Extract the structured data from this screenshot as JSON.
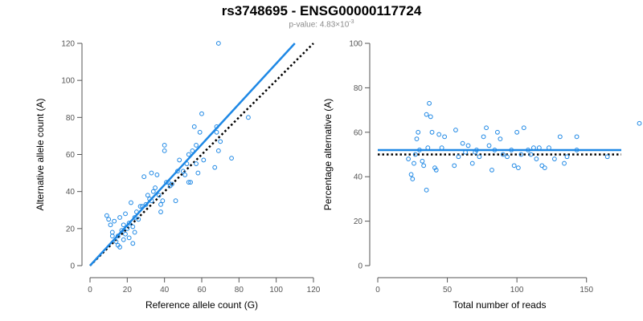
{
  "header": {
    "title": "rs3748695 - ENSG00000117724",
    "subtitle_prefix": "p-value: 4.83×10",
    "subtitle_exp": "-3"
  },
  "colors": {
    "accent": "#1e88e5",
    "expected": "#000000",
    "axis": "#555555"
  },
  "chart_data": [
    {
      "type": "scatter",
      "title": "",
      "xlabel": "Reference allele count (G)",
      "ylabel": "Alternative allele count (A)",
      "xlim": [
        0,
        120
      ],
      "ylim": [
        0,
        120
      ],
      "xticks": [
        0,
        20,
        40,
        60,
        80,
        100,
        120
      ],
      "yticks": [
        0,
        20,
        40,
        60,
        80,
        100,
        120
      ],
      "fit_line": {
        "name": "fit",
        "x": [
          0,
          110
        ],
        "y": [
          0,
          120
        ]
      },
      "ref_line": {
        "name": "expected",
        "x": [
          0,
          120
        ],
        "y": [
          0,
          120
        ]
      },
      "points": [
        [
          9,
          27
        ],
        [
          10,
          25
        ],
        [
          11,
          22
        ],
        [
          12,
          18
        ],
        [
          12,
          16
        ],
        [
          13,
          24
        ],
        [
          14,
          13
        ],
        [
          15,
          11
        ],
        [
          15,
          16
        ],
        [
          16,
          10
        ],
        [
          16,
          26
        ],
        [
          17,
          19
        ],
        [
          18,
          14
        ],
        [
          18,
          22
        ],
        [
          19,
          28
        ],
        [
          19,
          17
        ],
        [
          20,
          20
        ],
        [
          21,
          15
        ],
        [
          21,
          23
        ],
        [
          22,
          34
        ],
        [
          23,
          21
        ],
        [
          23,
          12
        ],
        [
          24,
          18
        ],
        [
          24,
          26
        ],
        [
          25,
          29
        ],
        [
          26,
          25
        ],
        [
          27,
          32
        ],
        [
          28,
          32
        ],
        [
          29,
          48
        ],
        [
          30,
          33
        ],
        [
          31,
          38
        ],
        [
          32,
          36
        ],
        [
          33,
          50
        ],
        [
          33,
          35
        ],
        [
          34,
          40
        ],
        [
          35,
          42
        ],
        [
          36,
          49
        ],
        [
          37,
          38
        ],
        [
          38,
          29
        ],
        [
          38,
          33
        ],
        [
          39,
          35
        ],
        [
          40,
          65
        ],
        [
          40,
          62
        ],
        [
          41,
          45
        ],
        [
          42,
          45
        ],
        [
          43,
          43
        ],
        [
          44,
          44
        ],
        [
          46,
          35
        ],
        [
          47,
          51
        ],
        [
          48,
          57
        ],
        [
          50,
          51
        ],
        [
          51,
          49
        ],
        [
          52,
          55
        ],
        [
          53,
          45
        ],
        [
          53,
          60
        ],
        [
          54,
          45
        ],
        [
          55,
          62
        ],
        [
          56,
          75
        ],
        [
          57,
          55
        ],
        [
          57,
          65
        ],
        [
          58,
          50
        ],
        [
          59,
          72
        ],
        [
          60,
          82
        ],
        [
          61,
          57
        ],
        [
          67,
          53
        ],
        [
          68,
          75
        ],
        [
          68,
          72
        ],
        [
          69,
          62
        ],
        [
          69,
          120
        ],
        [
          70,
          67
        ],
        [
          76,
          58
        ],
        [
          85,
          80
        ]
      ]
    },
    {
      "type": "scatter",
      "title": "",
      "xlabel": "Total number of reads",
      "ylabel": "Percentage alternative (A)",
      "xlim": [
        0,
        175
      ],
      "ylim": [
        0,
        100
      ],
      "xticks": [
        0,
        50,
        100,
        150
      ],
      "yticks": [
        0,
        20,
        40,
        60,
        80,
        100
      ],
      "fit_line": {
        "name": "fit",
        "value": 52
      },
      "ref_line": {
        "name": "expected",
        "value": 50
      },
      "points": [
        [
          22,
          48
        ],
        [
          24,
          41
        ],
        [
          25,
          39
        ],
        [
          26,
          46
        ],
        [
          27,
          50
        ],
        [
          28,
          57
        ],
        [
          29,
          60
        ],
        [
          30,
          52
        ],
        [
          32,
          47
        ],
        [
          33,
          45
        ],
        [
          35,
          34
        ],
        [
          35,
          68
        ],
        [
          36,
          53
        ],
        [
          37,
          73
        ],
        [
          38,
          67
        ],
        [
          39,
          60
        ],
        [
          41,
          44
        ],
        [
          42,
          43
        ],
        [
          44,
          59
        ],
        [
          46,
          53
        ],
        [
          48,
          58
        ],
        [
          55,
          45
        ],
        [
          56,
          61
        ],
        [
          58,
          49
        ],
        [
          61,
          55
        ],
        [
          63,
          51
        ],
        [
          65,
          54
        ],
        [
          68,
          46
        ],
        [
          70,
          51
        ],
        [
          71,
          52
        ],
        [
          73,
          49
        ],
        [
          76,
          58
        ],
        [
          78,
          62
        ],
        [
          80,
          54
        ],
        [
          82,
          43
        ],
        [
          84,
          52
        ],
        [
          86,
          60
        ],
        [
          88,
          57
        ],
        [
          90,
          50
        ],
        [
          93,
          49
        ],
        [
          96,
          52
        ],
        [
          98,
          45
        ],
        [
          100,
          60
        ],
        [
          101,
          44
        ],
        [
          103,
          50
        ],
        [
          105,
          62
        ],
        [
          108,
          52
        ],
        [
          110,
          50
        ],
        [
          112,
          53
        ],
        [
          114,
          48
        ],
        [
          116,
          53
        ],
        [
          118,
          45
        ],
        [
          120,
          44
        ],
        [
          123,
          53
        ],
        [
          127,
          48
        ],
        [
          131,
          58
        ],
        [
          134,
          46
        ],
        [
          136,
          49
        ],
        [
          143,
          52
        ],
        [
          143,
          58
        ],
        [
          165,
          49
        ],
        [
          188,
          64
        ]
      ]
    }
  ]
}
